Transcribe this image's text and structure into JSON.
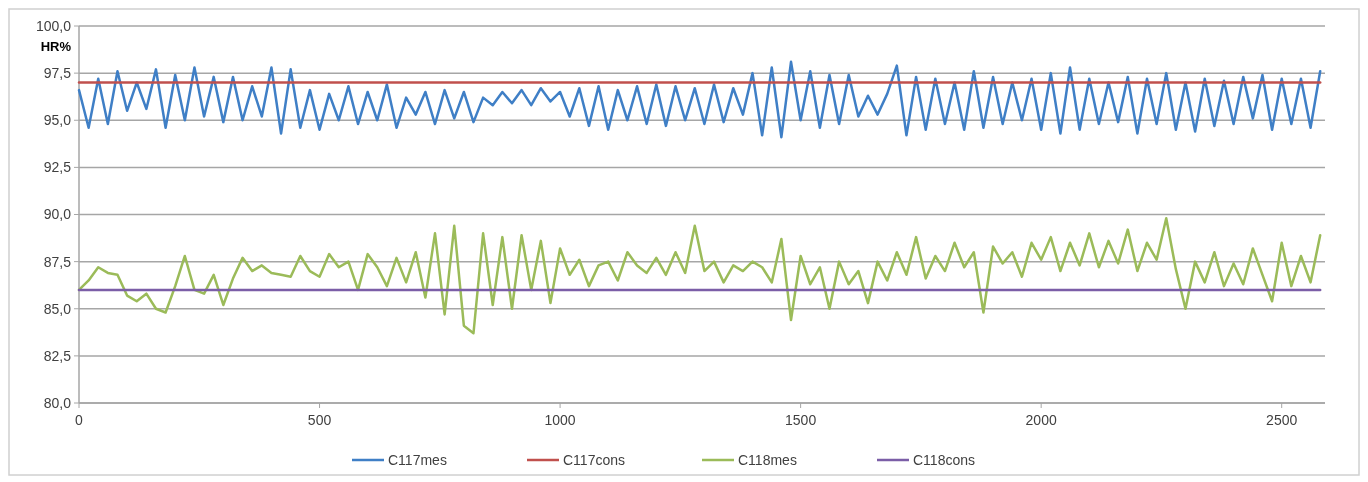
{
  "chart_data": {
    "type": "line",
    "ylabel": "HR%",
    "xlim": [
      0,
      2590
    ],
    "xticks": [
      0,
      500,
      1000,
      1500,
      2000,
      2500
    ],
    "ylim": [
      80,
      100
    ],
    "yticks": [
      {
        "value": 80,
        "label": "80,0"
      },
      {
        "value": 82.5,
        "label": "82,5"
      },
      {
        "value": 85,
        "label": "85,0"
      },
      {
        "value": 87.5,
        "label": "87,5"
      },
      {
        "value": 90,
        "label": "90,0"
      },
      {
        "value": 92.5,
        "label": "92,5"
      },
      {
        "value": 95,
        "label": "95,0"
      },
      {
        "value": 97.5,
        "label": "97,5"
      },
      {
        "value": 100,
        "label": "100,0"
      }
    ],
    "grid": "y",
    "legend": "bottom",
    "marker": "none",
    "line_style": "solid",
    "x": [
      0,
      20,
      40,
      60,
      80,
      100,
      120,
      140,
      160,
      180,
      200,
      220,
      240,
      260,
      280,
      300,
      320,
      340,
      360,
      380,
      400,
      420,
      440,
      460,
      480,
      500,
      520,
      540,
      560,
      580,
      600,
      620,
      640,
      660,
      680,
      700,
      720,
      740,
      760,
      780,
      800,
      820,
      840,
      860,
      880,
      900,
      920,
      940,
      960,
      980,
      1000,
      1020,
      1040,
      1060,
      1080,
      1100,
      1120,
      1140,
      1160,
      1180,
      1200,
      1220,
      1240,
      1260,
      1280,
      1300,
      1320,
      1340,
      1360,
      1380,
      1400,
      1420,
      1440,
      1460,
      1480,
      1500,
      1520,
      1540,
      1560,
      1580,
      1600,
      1620,
      1640,
      1660,
      1680,
      1700,
      1720,
      1740,
      1760,
      1780,
      1800,
      1820,
      1840,
      1860,
      1880,
      1900,
      1920,
      1940,
      1960,
      1980,
      2000,
      2020,
      2040,
      2060,
      2080,
      2100,
      2120,
      2140,
      2160,
      2180,
      2200,
      2220,
      2240,
      2260,
      2280,
      2300,
      2320,
      2340,
      2360,
      2380,
      2400,
      2420,
      2440,
      2460,
      2480,
      2500,
      2520,
      2540,
      2560,
      2580
    ],
    "series": [
      {
        "name": "C117mes",
        "color": "#3f7fc6",
        "values": [
          96.6,
          94.6,
          97.2,
          94.8,
          97.6,
          95.5,
          97.0,
          95.6,
          97.7,
          94.6,
          97.4,
          95.0,
          97.8,
          95.2,
          97.3,
          94.9,
          97.3,
          95.0,
          96.8,
          95.2,
          97.8,
          94.3,
          97.7,
          94.6,
          96.6,
          94.5,
          96.4,
          95.0,
          96.8,
          94.8,
          96.5,
          95.0,
          96.9,
          94.6,
          96.2,
          95.3,
          96.5,
          94.8,
          96.6,
          95.1,
          96.5,
          94.9,
          96.2,
          95.8,
          96.5,
          95.9,
          96.6,
          95.8,
          96.7,
          96.0,
          96.5,
          95.2,
          96.7,
          94.7,
          96.8,
          94.5,
          96.6,
          95.0,
          96.8,
          94.8,
          96.9,
          94.7,
          96.8,
          95.0,
          96.7,
          94.8,
          96.9,
          94.9,
          96.7,
          95.3,
          97.5,
          94.2,
          97.8,
          94.1,
          98.1,
          95.0,
          97.6,
          94.6,
          97.4,
          94.8,
          97.4,
          95.2,
          96.3,
          95.3,
          96.4,
          97.9,
          94.2,
          97.3,
          94.5,
          97.2,
          94.8,
          97.0,
          94.5,
          97.6,
          94.6,
          97.3,
          94.8,
          97.0,
          95.0,
          97.2,
          94.5,
          97.5,
          94.3,
          97.8,
          94.5,
          97.2,
          94.8,
          97.0,
          94.9,
          97.3,
          94.3,
          97.2,
          94.8,
          97.5,
          94.5,
          97.0,
          94.4,
          97.2,
          94.7,
          97.1,
          94.8,
          97.3,
          95.1,
          97.4,
          94.5,
          97.2,
          94.8,
          97.2,
          94.6,
          97.6
        ]
      },
      {
        "name": "C117cons",
        "color": "#c0504d",
        "values": [
          97,
          97,
          97,
          97,
          97,
          97,
          97,
          97,
          97,
          97,
          97,
          97,
          97,
          97,
          97,
          97,
          97,
          97,
          97,
          97,
          97,
          97,
          97,
          97,
          97,
          97,
          97,
          97,
          97,
          97,
          97,
          97,
          97,
          97,
          97,
          97,
          97,
          97,
          97,
          97,
          97,
          97,
          97,
          97,
          97,
          97,
          97,
          97,
          97,
          97,
          97,
          97,
          97,
          97,
          97,
          97,
          97,
          97,
          97,
          97,
          97,
          97,
          97,
          97,
          97,
          97,
          97,
          97,
          97,
          97,
          97,
          97,
          97,
          97,
          97,
          97,
          97,
          97,
          97,
          97,
          97,
          97,
          97,
          97,
          97,
          97,
          97,
          97,
          97,
          97,
          97,
          97,
          97,
          97,
          97,
          97,
          97,
          97,
          97,
          97,
          97,
          97,
          97,
          97,
          97,
          97,
          97,
          97,
          97,
          97,
          97,
          97,
          97,
          97,
          97,
          97,
          97,
          97,
          97,
          97,
          97,
          97,
          97,
          97,
          97,
          97,
          97,
          97,
          97,
          97
        ]
      },
      {
        "name": "C118mes",
        "color": "#9bbb59",
        "values": [
          86.0,
          86.5,
          87.2,
          86.9,
          86.8,
          85.7,
          85.4,
          85.8,
          85.0,
          84.8,
          86.2,
          87.8,
          86.0,
          85.8,
          86.8,
          85.2,
          86.6,
          87.7,
          87.0,
          87.3,
          86.9,
          86.8,
          86.7,
          87.8,
          87.0,
          86.7,
          87.9,
          87.2,
          87.5,
          86.0,
          87.9,
          87.2,
          86.2,
          87.7,
          86.4,
          88.0,
          85.6,
          89.0,
          84.7,
          89.4,
          84.1,
          83.7,
          89.0,
          85.2,
          88.8,
          85.0,
          88.9,
          86.0,
          88.6,
          85.3,
          88.2,
          86.8,
          87.6,
          86.2,
          87.3,
          87.5,
          86.5,
          88.0,
          87.3,
          86.9,
          87.7,
          86.8,
          88.0,
          86.9,
          89.4,
          87.0,
          87.5,
          86.4,
          87.3,
          87.0,
          87.5,
          87.2,
          86.4,
          88.7,
          84.4,
          87.8,
          86.3,
          87.2,
          85.0,
          87.5,
          86.3,
          87.0,
          85.3,
          87.5,
          86.5,
          88.0,
          86.8,
          88.8,
          86.6,
          87.8,
          87.0,
          88.5,
          87.2,
          88.0,
          84.8,
          88.3,
          87.4,
          88.0,
          86.7,
          88.5,
          87.6,
          88.8,
          87.0,
          88.5,
          87.3,
          89.0,
          87.2,
          88.6,
          87.4,
          89.2,
          87.0,
          88.5,
          87.6,
          89.8,
          87.1,
          85.0,
          87.5,
          86.4,
          88.0,
          86.2,
          87.4,
          86.3,
          88.2,
          86.8,
          85.4,
          88.5,
          86.2,
          87.8,
          86.4,
          88.9
        ]
      },
      {
        "name": "C118cons",
        "color": "#7b5ea7",
        "values": [
          86,
          86,
          86,
          86,
          86,
          86,
          86,
          86,
          86,
          86,
          86,
          86,
          86,
          86,
          86,
          86,
          86,
          86,
          86,
          86,
          86,
          86,
          86,
          86,
          86,
          86,
          86,
          86,
          86,
          86,
          86,
          86,
          86,
          86,
          86,
          86,
          86,
          86,
          86,
          86,
          86,
          86,
          86,
          86,
          86,
          86,
          86,
          86,
          86,
          86,
          86,
          86,
          86,
          86,
          86,
          86,
          86,
          86,
          86,
          86,
          86,
          86,
          86,
          86,
          86,
          86,
          86,
          86,
          86,
          86,
          86,
          86,
          86,
          86,
          86,
          86,
          86,
          86,
          86,
          86,
          86,
          86,
          86,
          86,
          86,
          86,
          86,
          86,
          86,
          86,
          86,
          86,
          86,
          86,
          86,
          86,
          86,
          86,
          86,
          86,
          86,
          86,
          86,
          86,
          86,
          86,
          86,
          86,
          86,
          86,
          86,
          86,
          86,
          86,
          86,
          86,
          86,
          86,
          86,
          86,
          86,
          86,
          86,
          86,
          86,
          86,
          86,
          86,
          86,
          86
        ]
      }
    ]
  }
}
